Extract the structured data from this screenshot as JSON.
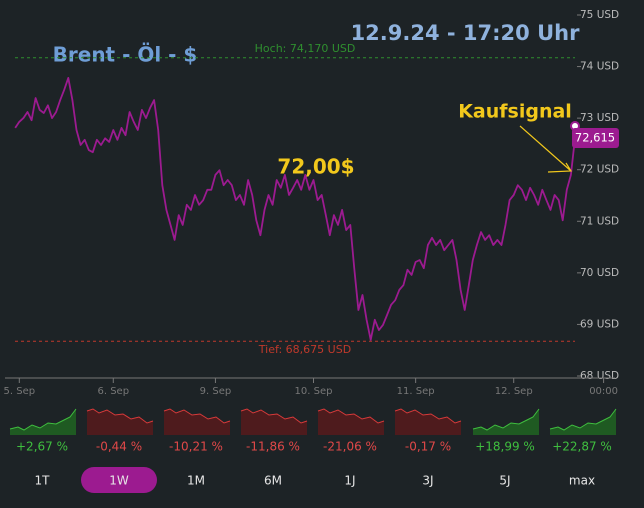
{
  "chart_data": {
    "type": "line",
    "title": "Brent - Öl - $",
    "subtitle": "12.9.24 - 17:20 Uhr",
    "color": "#9c1b90",
    "values": [
      72.81,
      72.93,
      73.0,
      73.12,
      72.96,
      73.39,
      73.16,
      73.1,
      73.25,
      73.0,
      73.12,
      73.35,
      73.55,
      73.78,
      73.35,
      72.77,
      72.48,
      72.58,
      72.38,
      72.34,
      72.58,
      72.48,
      72.61,
      72.54,
      72.77,
      72.58,
      72.81,
      72.67,
      73.12,
      72.93,
      72.77,
      73.16,
      73.0,
      73.2,
      73.35,
      72.77,
      71.7,
      71.22,
      70.93,
      70.64,
      71.12,
      70.93,
      71.32,
      71.22,
      71.51,
      71.32,
      71.41,
      71.61,
      71.61,
      71.9,
      71.99,
      71.7,
      71.8,
      71.7,
      71.41,
      71.51,
      71.32,
      71.8,
      71.51,
      71.02,
      70.73,
      71.22,
      71.51,
      71.32,
      71.8,
      71.65,
      71.9,
      71.51,
      71.65,
      71.8,
      71.61,
      71.9,
      71.61,
      71.8,
      71.41,
      71.51,
      71.12,
      70.73,
      71.12,
      70.93,
      71.22,
      70.83,
      70.93,
      70.06,
      69.28,
      69.57,
      69.09,
      68.7,
      69.09,
      68.89,
      68.99,
      69.18,
      69.38,
      69.47,
      69.67,
      69.76,
      70.06,
      69.96,
      70.21,
      70.25,
      70.09,
      70.54,
      70.68,
      70.54,
      70.64,
      70.44,
      70.54,
      70.64,
      70.25,
      69.67,
      69.28,
      69.76,
      70.25,
      70.54,
      70.79,
      70.64,
      70.73,
      70.54,
      70.64,
      70.54,
      70.93,
      71.41,
      71.51,
      71.7,
      71.61,
      71.41,
      71.65,
      71.51,
      71.32,
      71.61,
      71.41,
      71.22,
      71.51,
      71.41,
      71.02,
      71.61,
      71.9,
      72.615
    ],
    "xlim": [
      -2.5,
      137
    ],
    "xticks": [
      {
        "value": 1,
        "label": "5. Sep"
      },
      {
        "value": 24,
        "label": "6. Sep"
      },
      {
        "value": 49,
        "label": "9. Sep"
      },
      {
        "value": 73,
        "label": "10. Sep"
      },
      {
        "value": 98,
        "label": "11. Sep"
      },
      {
        "value": 122,
        "label": "12. Sep"
      },
      {
        "value": 144,
        "label": "00:00"
      }
    ],
    "ylim": [
      68,
      75
    ],
    "yticks": [
      {
        "value": 68,
        "label": "68 USD"
      },
      {
        "value": 69,
        "label": "69 USD"
      },
      {
        "value": 70,
        "label": "70 USD"
      },
      {
        "value": 71,
        "label": "71 USD"
      },
      {
        "value": 72,
        "label": "72 USD"
      },
      {
        "value": 73,
        "label": "73 USD"
      },
      {
        "value": 74,
        "label": "74 USD"
      },
      {
        "value": 75,
        "label": "75 USD"
      }
    ],
    "reference_lines": [
      {
        "value": 74.17,
        "label": "Hoch: 74,170 USD",
        "color": "#2f8f2f"
      },
      {
        "value": 68.675,
        "label": "Tief: 68,675 USD",
        "color": "#c0392b"
      }
    ],
    "last_value": {
      "value": 72.615,
      "label": "72,615"
    },
    "annotations": [
      {
        "text": "72,00$"
      },
      {
        "text": "Kaufsignal"
      }
    ]
  },
  "performance": [
    "+2,67 %",
    "-0,44 %",
    "-10,21 %",
    "-11,86 %",
    "-21,06 %",
    "-0,17 %",
    "+18,99 %",
    "+22,87 %"
  ],
  "timeframes": {
    "items": [
      "1T",
      "1W",
      "1M",
      "6M",
      "1J",
      "3J",
      "5J",
      "max"
    ],
    "active": "1W"
  }
}
